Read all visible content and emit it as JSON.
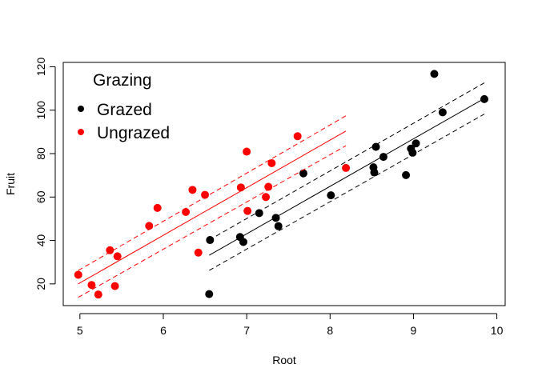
{
  "chart_data": {
    "type": "scatter",
    "xlabel": "Root",
    "ylabel": "Fruit",
    "xlim": [
      4.8,
      10.1
    ],
    "ylim": [
      10,
      122
    ],
    "xticks": [
      5,
      6,
      7,
      8,
      9,
      10
    ],
    "yticks": [
      20,
      40,
      60,
      80,
      100,
      120
    ],
    "box": true,
    "legend": {
      "title": "Grazing",
      "position": "top-left",
      "entries": [
        {
          "label": "Grazed",
          "color": "#000000"
        },
        {
          "label": "Ungrazed",
          "color": "#ff0000"
        }
      ]
    },
    "series": [
      {
        "name": "Grazed",
        "color": "#000000",
        "points": [
          {
            "x": 6.55,
            "y": 15.3
          },
          {
            "x": 6.56,
            "y": 40.2
          },
          {
            "x": 6.92,
            "y": 41.6
          },
          {
            "x": 6.96,
            "y": 39.3
          },
          {
            "x": 7.15,
            "y": 52.6
          },
          {
            "x": 7.35,
            "y": 50.4
          },
          {
            "x": 7.38,
            "y": 46.6
          },
          {
            "x": 7.68,
            "y": 70.9
          },
          {
            "x": 8.01,
            "y": 60.8
          },
          {
            "x": 8.52,
            "y": 73.7
          },
          {
            "x": 8.53,
            "y": 71.3
          },
          {
            "x": 8.55,
            "y": 83.1
          },
          {
            "x": 8.64,
            "y": 78.5
          },
          {
            "x": 8.91,
            "y": 70.1
          },
          {
            "x": 8.97,
            "y": 82.3
          },
          {
            "x": 8.99,
            "y": 80.4
          },
          {
            "x": 9.03,
            "y": 84.7
          },
          {
            "x": 9.25,
            "y": 116.7
          },
          {
            "x": 9.35,
            "y": 99.0
          },
          {
            "x": 9.85,
            "y": 105.1
          }
        ],
        "fit": {
          "x": [
            6.55,
            9.85
          ],
          "y": [
            33.2,
            105.4
          ]
        },
        "lower": {
          "x": [
            6.55,
            9.85
          ],
          "y": [
            26.2,
            98.2
          ]
        },
        "upper": {
          "x": [
            6.55,
            9.85
          ],
          "y": [
            40.2,
            112.6
          ]
        }
      },
      {
        "name": "Ungrazed",
        "color": "#ff0000",
        "points": [
          {
            "x": 4.98,
            "y": 24.2
          },
          {
            "x": 5.14,
            "y": 19.5
          },
          {
            "x": 5.22,
            "y": 15.1
          },
          {
            "x": 5.36,
            "y": 35.5
          },
          {
            "x": 5.42,
            "y": 19.0
          },
          {
            "x": 5.45,
            "y": 32.7
          },
          {
            "x": 5.83,
            "y": 46.7
          },
          {
            "x": 5.93,
            "y": 55.0
          },
          {
            "x": 6.27,
            "y": 53.1
          },
          {
            "x": 6.35,
            "y": 63.3
          },
          {
            "x": 6.42,
            "y": 34.4
          },
          {
            "x": 6.5,
            "y": 61.0
          },
          {
            "x": 6.93,
            "y": 64.4
          },
          {
            "x": 7.0,
            "y": 80.9
          },
          {
            "x": 7.01,
            "y": 53.6
          },
          {
            "x": 7.23,
            "y": 60.0
          },
          {
            "x": 7.26,
            "y": 64.7
          },
          {
            "x": 7.3,
            "y": 75.6
          },
          {
            "x": 7.61,
            "y": 88.0
          },
          {
            "x": 8.19,
            "y": 73.4
          }
        ],
        "fit": {
          "x": [
            4.98,
            8.19
          ],
          "y": [
            20.0,
            90.4
          ]
        },
        "lower": {
          "x": [
            4.98,
            8.19
          ],
          "y": [
            13.8,
            83.6
          ]
        },
        "upper": {
          "x": [
            4.98,
            8.19
          ],
          "y": [
            26.2,
            97.4
          ]
        }
      }
    ]
  }
}
